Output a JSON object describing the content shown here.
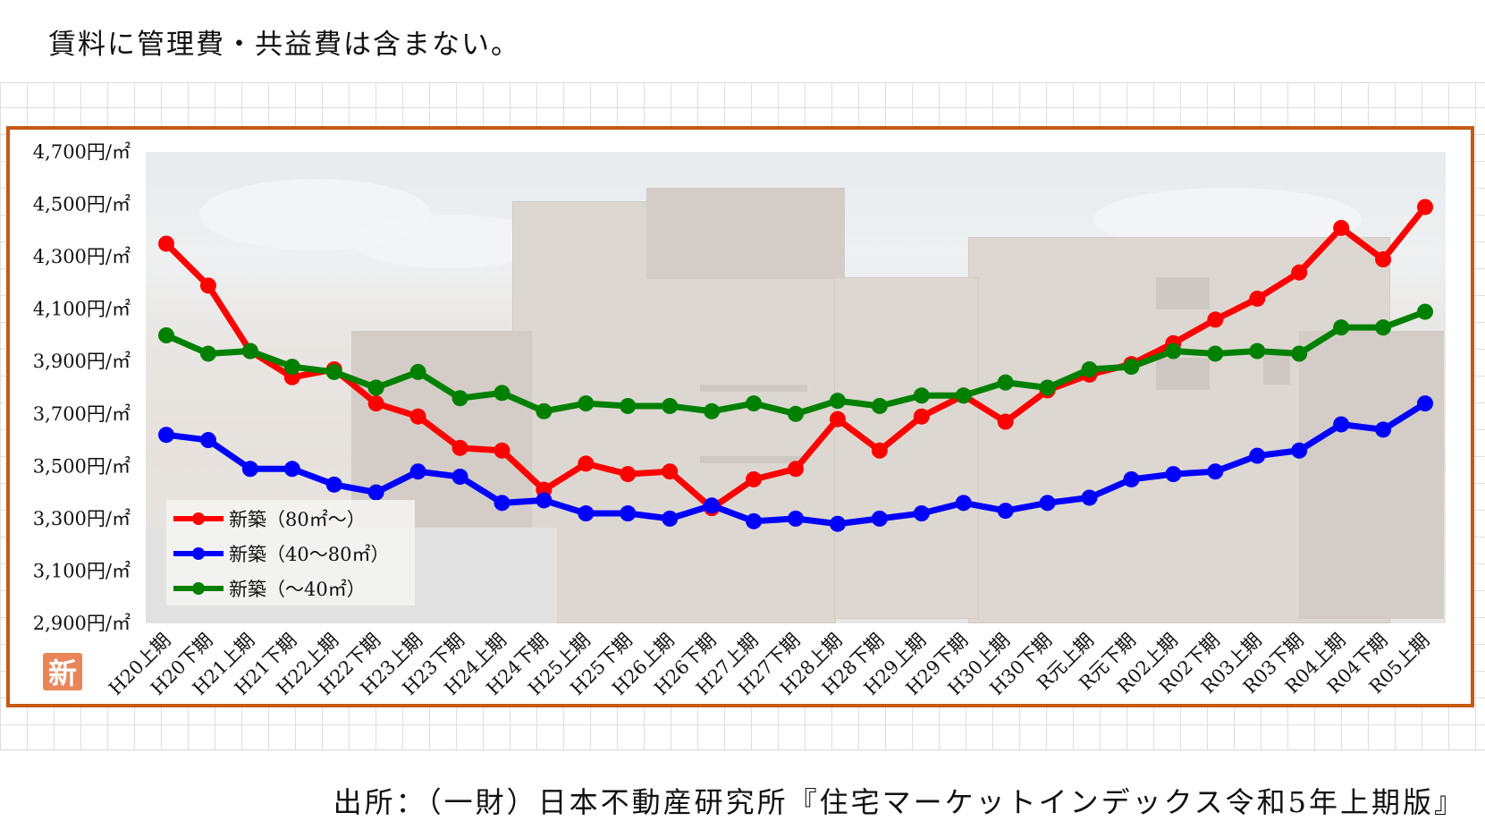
{
  "header": {
    "note": "賃料に管理費・共益費は含まない。"
  },
  "footer": {
    "source": "出所：（一財）日本不動産研究所『住宅マーケットインデックス令和5年上期版』"
  },
  "badge": {
    "label": "新"
  },
  "chart_data": {
    "type": "line",
    "title": "",
    "xlabel": "",
    "ylabel": "",
    "ylim": [
      2900,
      4700
    ],
    "yticks": [
      4700,
      4500,
      4300,
      4100,
      3900,
      3700,
      3500,
      3300,
      3100,
      2900
    ],
    "ytick_labels": [
      "4,700円/㎡",
      "4,500円/㎡",
      "4,300円/㎡",
      "4,100円/㎡",
      "3,900円/㎡",
      "3,700円/㎡",
      "3,500円/㎡",
      "3,300円/㎡",
      "3,100円/㎡",
      "2,900円/㎡"
    ],
    "grid": false,
    "legend_position": "bottom-left",
    "categories": [
      "H20上期",
      "H20下期",
      "H21上期",
      "H21下期",
      "H22上期",
      "H22下期",
      "H23上期",
      "H23下期",
      "H24上期",
      "H24下期",
      "H25上期",
      "H25下期",
      "H26上期",
      "H26下期",
      "H27上期",
      "H27下期",
      "H28上期",
      "H28下期",
      "H29上期",
      "H29下期",
      "H30上期",
      "H30下期",
      "R元上期",
      "R元下期",
      "R02上期",
      "R02下期",
      "R03上期",
      "R03下期",
      "R04上期",
      "R04下期",
      "R05上期"
    ],
    "series": [
      {
        "name": "新築（80㎡～）",
        "color": "#ff0000",
        "values": [
          4350,
          4190,
          3940,
          3840,
          3870,
          3740,
          3690,
          3570,
          3560,
          3410,
          3510,
          3470,
          3480,
          3340,
          3450,
          3490,
          3680,
          3560,
          3690,
          3770,
          3670,
          3790,
          3850,
          3890,
          3970,
          4060,
          4140,
          4240,
          4410,
          4290,
          4490
        ]
      },
      {
        "name": "新築（40～80㎡）",
        "color": "#0000ff",
        "values": [
          3620,
          3600,
          3490,
          3490,
          3430,
          3400,
          3480,
          3460,
          3360,
          3370,
          3320,
          3320,
          3300,
          3350,
          3290,
          3300,
          3280,
          3300,
          3320,
          3360,
          3330,
          3360,
          3380,
          3450,
          3470,
          3480,
          3540,
          3560,
          3660,
          3640,
          3740
        ]
      },
      {
        "name": "新築（～40㎡）",
        "color": "#008000",
        "values": [
          4000,
          3930,
          3940,
          3880,
          3860,
          3800,
          3860,
          3760,
          3780,
          3710,
          3740,
          3730,
          3730,
          3710,
          3740,
          3700,
          3750,
          3730,
          3770,
          3770,
          3820,
          3800,
          3870,
          3880,
          3940,
          3930,
          3940,
          3930,
          4030,
          4030,
          4090
        ]
      }
    ]
  }
}
